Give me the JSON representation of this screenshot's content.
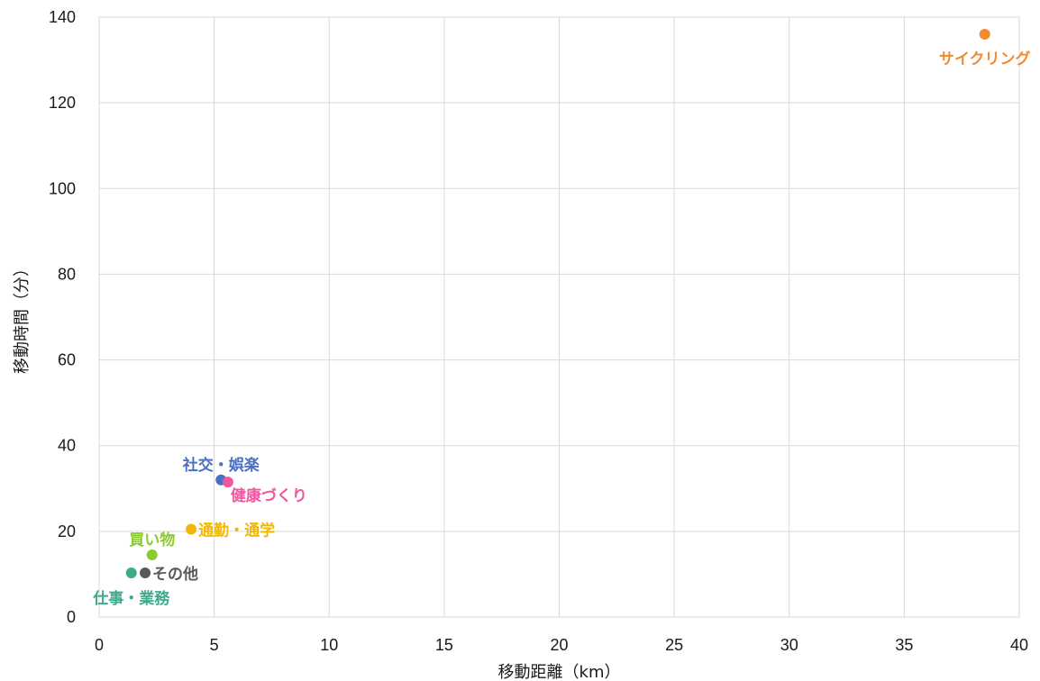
{
  "chart_data": {
    "type": "scatter",
    "xlabel": "移動距離（km）",
    "ylabel": "移動時間（分）",
    "xlim": [
      0,
      40
    ],
    "ylim": [
      0,
      140
    ],
    "xticks": [
      0,
      5,
      10,
      15,
      20,
      25,
      30,
      35,
      40
    ],
    "yticks": [
      0,
      20,
      40,
      60,
      80,
      100,
      120,
      140
    ],
    "grid": true,
    "points": [
      {
        "label": "サイクリング",
        "x": 38.5,
        "y": 136,
        "color": "#F28A30",
        "label_pos": "below"
      },
      {
        "label": "社交・娯楽",
        "x": 5.3,
        "y": 32,
        "color": "#4A6FC4",
        "label_pos": "above"
      },
      {
        "label": "健康づくり",
        "x": 5.6,
        "y": 31.5,
        "color": "#F0579E",
        "label_pos": "right-below"
      },
      {
        "label": "通勤・通学",
        "x": 4.0,
        "y": 20.5,
        "color": "#F2B705",
        "label_pos": "right"
      },
      {
        "label": "買い物",
        "x": 2.3,
        "y": 14.5,
        "color": "#8CCB2E",
        "label_pos": "above"
      },
      {
        "label": "その他",
        "x": 2.0,
        "y": 10.3,
        "color": "#595959",
        "label_pos": "right"
      },
      {
        "label": "仕事・業務",
        "x": 1.4,
        "y": 10.3,
        "color": "#3DAA8C",
        "label_pos": "below"
      }
    ]
  }
}
